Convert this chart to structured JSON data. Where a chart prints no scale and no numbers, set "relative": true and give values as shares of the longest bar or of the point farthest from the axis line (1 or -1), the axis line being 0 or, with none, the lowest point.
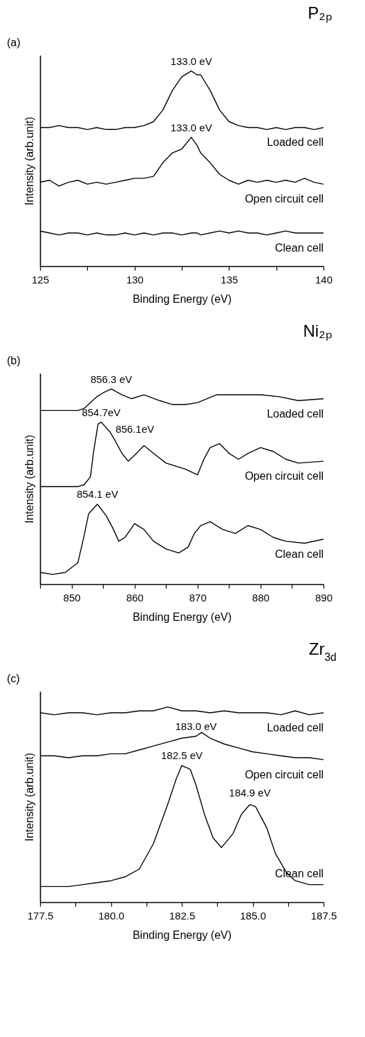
{
  "chart_data": [
    {
      "type": "line",
      "title": "P₂ₚ",
      "xlabel": "Binding Energy (eV)",
      "ylabel": "Intensity (arb.unit)",
      "relative": true,
      "xlim": [
        125,
        140
      ],
      "xticks": [
        125,
        {
          "value": 127.5,
          "label": null
        },
        130,
        {
          "value": 132.5,
          "label": null
        },
        135,
        {
          "value": 137.5,
          "label": null
        },
        140
      ],
      "x": [
        125,
        125.5,
        126,
        126.5,
        127,
        127.5,
        128,
        128.5,
        129,
        129.5,
        130,
        130.5,
        131,
        131.5,
        132,
        132.5,
        133,
        133.3,
        133.5,
        134,
        134.5,
        135,
        135.5,
        136,
        136.5,
        137,
        137.5,
        138,
        138.5,
        139,
        139.5,
        140
      ],
      "annotations": [
        "(a)",
        {
          "text": "133.0 eV",
          "x": 133,
          "y": 1.0
        },
        {
          "text": "133.0 eV",
          "x": 133,
          "y": 0.66
        }
      ],
      "series": [
        {
          "name": "Loaded cell",
          "color": "#000000",
          "values": [
            0.71,
            0.71,
            0.72,
            0.71,
            0.71,
            0.7,
            0.71,
            0.7,
            0.7,
            0.71,
            0.71,
            0.72,
            0.74,
            0.8,
            0.9,
            0.97,
            1.0,
            0.98,
            0.98,
            0.9,
            0.8,
            0.74,
            0.72,
            0.71,
            0.71,
            0.7,
            0.71,
            0.7,
            0.71,
            0.71,
            0.7,
            0.71
          ]
        },
        {
          "name": "Open circuit cell",
          "color": "#000000",
          "values": [
            0.43,
            0.44,
            0.41,
            0.43,
            0.44,
            0.42,
            0.43,
            0.42,
            0.43,
            0.44,
            0.45,
            0.45,
            0.46,
            0.53,
            0.58,
            0.6,
            0.66,
            0.62,
            0.58,
            0.53,
            0.47,
            0.44,
            0.42,
            0.44,
            0.43,
            0.44,
            0.43,
            0.44,
            0.43,
            0.45,
            0.43,
            0.42
          ]
        },
        {
          "name": "Clean cell",
          "color": "#000000",
          "values": [
            0.18,
            0.17,
            0.16,
            0.17,
            0.17,
            0.16,
            0.17,
            0.16,
            0.16,
            0.17,
            0.16,
            0.17,
            0.16,
            0.17,
            0.17,
            0.16,
            0.17,
            0.17,
            0.16,
            0.17,
            0.18,
            0.17,
            0.18,
            0.17,
            0.17,
            0.16,
            0.17,
            0.18,
            0.17,
            0.17,
            0.17,
            0.17
          ]
        }
      ]
    },
    {
      "type": "line",
      "title": "Ni₂ₚ",
      "xlabel": "Binding Energy (eV)",
      "ylabel": "Intensity (arb.unit)",
      "relative": true,
      "xlim": [
        845,
        890
      ],
      "xticks": [
        {
          "value": 845,
          "label": null
        },
        850,
        {
          "value": 855,
          "label": null
        },
        860,
        {
          "value": 865,
          "label": null
        },
        870,
        {
          "value": 875,
          "label": null
        },
        880,
        {
          "value": 885,
          "label": null
        },
        890
      ],
      "annotations": [
        "(b)",
        {
          "text": "856.3 eV",
          "x": 856.3,
          "y": 1.0
        },
        {
          "text": "854.7eV",
          "x": 854.7,
          "y": 0.83
        },
        {
          "text": "856.1eV",
          "x": 856.1,
          "y": 0.78
        },
        {
          "text": "854.1 eV",
          "x": 854.1,
          "y": 0.41
        }
      ],
      "series": [
        {
          "name": "Loaded cell",
          "color": "#000000",
          "x": [
            845,
            848,
            851,
            852,
            853,
            854,
            855,
            856.3,
            858,
            859.5,
            861.5,
            864,
            866,
            868,
            870,
            873,
            876,
            880,
            883,
            886,
            890
          ],
          "values": [
            0.89,
            0.89,
            0.89,
            0.9,
            0.93,
            0.96,
            0.98,
            1.0,
            0.97,
            0.95,
            0.97,
            0.94,
            0.92,
            0.92,
            0.93,
            0.97,
            0.97,
            0.97,
            0.96,
            0.94,
            0.95
          ]
        },
        {
          "name": "Open circuit cell",
          "color": "#000000",
          "x": [
            845,
            848,
            851,
            852,
            853,
            853.5,
            854.2,
            854.7,
            856.1,
            857,
            858,
            859,
            860,
            861.5,
            863,
            865,
            868,
            870,
            871,
            872,
            873.5,
            875,
            876.5,
            878,
            880,
            882,
            884,
            886,
            890
          ],
          "values": [
            0.5,
            0.5,
            0.5,
            0.51,
            0.55,
            0.68,
            0.82,
            0.83,
            0.78,
            0.73,
            0.67,
            0.63,
            0.66,
            0.71,
            0.67,
            0.62,
            0.59,
            0.56,
            0.64,
            0.7,
            0.72,
            0.67,
            0.64,
            0.67,
            0.7,
            0.68,
            0.64,
            0.62,
            0.63
          ]
        },
        {
          "name": "Clean cell",
          "color": "#000000",
          "x": [
            845,
            847,
            849,
            851,
            852,
            852.7,
            854.1,
            855.5,
            856.5,
            857.5,
            858.5,
            860,
            861.5,
            863,
            865,
            867,
            868.5,
            869.5,
            870.5,
            872,
            874,
            876,
            878,
            880,
            882,
            884,
            887,
            890
          ],
          "values": [
            0.06,
            0.05,
            0.06,
            0.11,
            0.25,
            0.36,
            0.41,
            0.35,
            0.29,
            0.22,
            0.24,
            0.31,
            0.28,
            0.22,
            0.18,
            0.16,
            0.19,
            0.26,
            0.3,
            0.32,
            0.28,
            0.26,
            0.3,
            0.28,
            0.24,
            0.22,
            0.21,
            0.23
          ]
        }
      ]
    },
    {
      "type": "line",
      "title": "Zr$_{3d}$",
      "xlabel": "Binding Energy (eV)",
      "ylabel": "Intensity (arb.unit)",
      "relative": true,
      "xlim": [
        177.5,
        187.5
      ],
      "xticks": [
        177.5,
        {
          "value": 178.75,
          "label": null
        },
        {
          "value": 180,
          "label": "180.0"
        },
        {
          "value": 181.25,
          "label": null
        },
        182.5,
        {
          "value": 183.75,
          "label": null
        },
        {
          "value": 185,
          "label": "185.0"
        },
        {
          "value": 186.25,
          "label": null
        },
        187.5
      ],
      "annotations": [
        "(c)",
        {
          "text": "183.0 eV",
          "x": 183,
          "y": 0.85
        },
        {
          "text": "182.5 eV",
          "x": 182.5,
          "y": 0.7
        },
        {
          "text": "184.9 eV",
          "x": 184.9,
          "y": 0.51
        }
      ],
      "series": [
        {
          "name": "Loaded cell",
          "color": "#000000",
          "x": [
            177.5,
            178,
            178.5,
            179,
            179.5,
            180,
            180.5,
            181,
            181.5,
            182,
            182.5,
            183,
            183.5,
            184,
            184.5,
            185,
            185.5,
            186,
            186.5,
            187,
            187.5
          ],
          "values": [
            0.97,
            0.96,
            0.97,
            0.97,
            0.96,
            0.97,
            0.97,
            0.98,
            0.98,
            1.0,
            0.98,
            0.98,
            0.97,
            0.98,
            0.97,
            0.97,
            0.97,
            0.96,
            0.98,
            0.96,
            0.97
          ]
        },
        {
          "name": "Open circuit cell",
          "color": "#000000",
          "x": [
            177.5,
            178,
            178.5,
            179,
            179.5,
            180,
            180.5,
            181,
            181.5,
            182,
            182.5,
            183,
            183.2,
            183.5,
            184,
            184.5,
            185,
            185.5,
            186,
            186.5,
            187,
            187.5
          ],
          "values": [
            0.75,
            0.75,
            0.74,
            0.75,
            0.75,
            0.76,
            0.76,
            0.78,
            0.8,
            0.82,
            0.84,
            0.85,
            0.87,
            0.84,
            0.81,
            0.79,
            0.77,
            0.76,
            0.75,
            0.74,
            0.74,
            0.73
          ]
        },
        {
          "name": "Clean cell",
          "color": "#000000",
          "x": [
            177.5,
            178,
            178.5,
            179,
            179.5,
            180,
            180.5,
            181,
            181.5,
            182,
            182.3,
            182.5,
            182.8,
            183,
            183.3,
            183.6,
            183.9,
            184.3,
            184.6,
            184.9,
            185.1,
            185.5,
            185.8,
            186.2,
            186.5,
            187,
            187.5
          ],
          "values": [
            0.08,
            0.08,
            0.08,
            0.09,
            0.1,
            0.11,
            0.13,
            0.17,
            0.3,
            0.5,
            0.63,
            0.7,
            0.68,
            0.6,
            0.45,
            0.33,
            0.28,
            0.35,
            0.45,
            0.5,
            0.49,
            0.38,
            0.25,
            0.15,
            0.11,
            0.09,
            0.09
          ]
        }
      ]
    }
  ]
}
